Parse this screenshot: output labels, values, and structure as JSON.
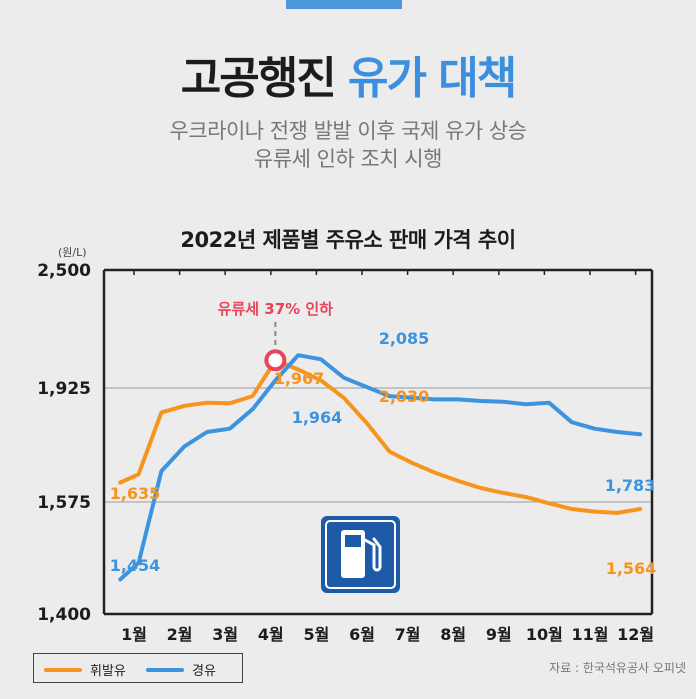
{
  "header": {
    "title_main": "고공행진",
    "title_accent": "유가 대책",
    "subtitle_line1": "우크라이나 전쟁 발발 이후 국제 유가 상승",
    "subtitle_line2": "유류세 인하 조치 시행"
  },
  "colors": {
    "gasoline": "#f7941e",
    "diesel": "#3d93dd",
    "accent_blue": "#3c8fde",
    "annotation_red": "#e8445a"
  },
  "chart_data": {
    "type": "line",
    "title": "2022년 제품별 주유소 판매 가격 추이",
    "unit_label": "(원/L)",
    "categories": [
      "1월",
      "2월",
      "3월",
      "4월",
      "5월",
      "6월",
      "7월",
      "8월",
      "9월",
      "10월",
      "11월",
      "12월"
    ],
    "y_ticks": [
      "2,500",
      "1,925",
      "1,575",
      "1,400"
    ],
    "y_tick_values": [
      2500,
      1925,
      1575,
      1400
    ],
    "gridlines_at": [
      1925,
      1575
    ],
    "x": [
      0.7,
      1.1,
      1.6,
      2.1,
      2.6,
      3.1,
      3.6,
      4.1,
      4.6,
      5.1,
      5.6,
      6.1,
      6.6,
      7.1,
      7.6,
      8.1,
      8.6,
      9.1,
      9.6,
      10.1,
      10.6,
      11.1,
      11.6,
      12.1
    ],
    "series": [
      {
        "name": "휘발유",
        "color": "#f7941e",
        "values": [
          1635,
          1660,
          1850,
          1870,
          1880,
          1878,
          1900,
          2060,
          2015,
          1962,
          1895,
          1818,
          1730,
          1695,
          1665,
          1640,
          1618,
          1603,
          1590,
          1573,
          1564,
          1560,
          1558,
          1564
        ]
      },
      {
        "name": "경유",
        "color": "#3d93dd",
        "values": [
          1454,
          1480,
          1670,
          1745,
          1790,
          1800,
          1860,
          1962,
          2085,
          2065,
          1975,
          1930,
          1900,
          1895,
          1890,
          1890,
          1885,
          1883,
          1875,
          1880,
          1820,
          1800,
          1790,
          1783
        ]
      }
    ],
    "data_labels": [
      {
        "series": "휘발유",
        "text": "1,635"
      },
      {
        "series": "경유",
        "text": "1,454"
      },
      {
        "series": "휘발유",
        "text": "1,967"
      },
      {
        "series": "경유",
        "text": "1,964"
      },
      {
        "series": "경유",
        "text": "2,085"
      },
      {
        "series": "휘발유",
        "text": "2,030"
      },
      {
        "series": "경유",
        "text": "1,783"
      },
      {
        "series": "휘발유",
        "text": "1,564"
      }
    ],
    "annotation": "유류세 37% 인하",
    "legend": [
      {
        "name": "휘발유",
        "color": "#f7941e"
      },
      {
        "name": "경유",
        "color": "#3d93dd"
      }
    ],
    "legend_position": "bottom-left"
  },
  "source": "자료 : 한국석유공사 오피넷"
}
